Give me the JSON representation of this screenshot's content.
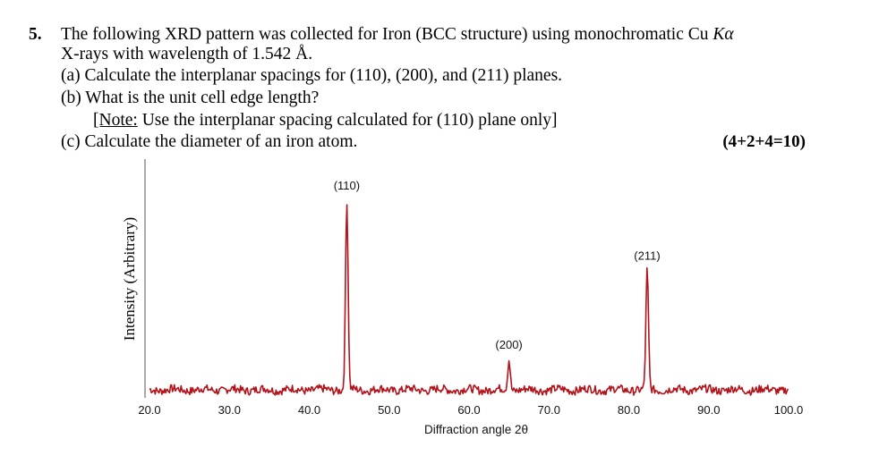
{
  "question": {
    "number": "5.",
    "line1_pre": "The following XRD pattern was collected for Iron (BCC structure) using monochromatic Cu ",
    "line1_italic": "Kα",
    "line2": "X-rays with wavelength of 1.542 Å.",
    "part_a": "(a)  Calculate the interplanar spacings for (110), (200), and (211) planes.",
    "part_b": "(b)  What is the unit cell edge length?",
    "note_label": "[Note:",
    "note_rest": " Use the interplanar spacing calculated for (110) plane only]",
    "part_c": "(c)  Calculate the diameter of an iron atom.",
    "marks": "(4+2+4=10)"
  },
  "chart_data": {
    "type": "line",
    "xlabel": "Diffraction angle 2θ",
    "ylabel": "Intensity (Arbitrary)",
    "xlim": [
      20.0,
      100.0
    ],
    "x_ticks": [
      "20.0",
      "30.0",
      "40.0",
      "50.0",
      "60.0",
      "70.0",
      "80.0",
      "90.0",
      "100.0"
    ],
    "grid": false,
    "line_color": "#b3131b",
    "peaks": [
      {
        "label": "(110)",
        "x": 44.7,
        "intensity": 100
      },
      {
        "label": "(200)",
        "x": 65.0,
        "intensity": 16
      },
      {
        "label": "(211)",
        "x": 82.3,
        "intensity": 63
      }
    ]
  }
}
